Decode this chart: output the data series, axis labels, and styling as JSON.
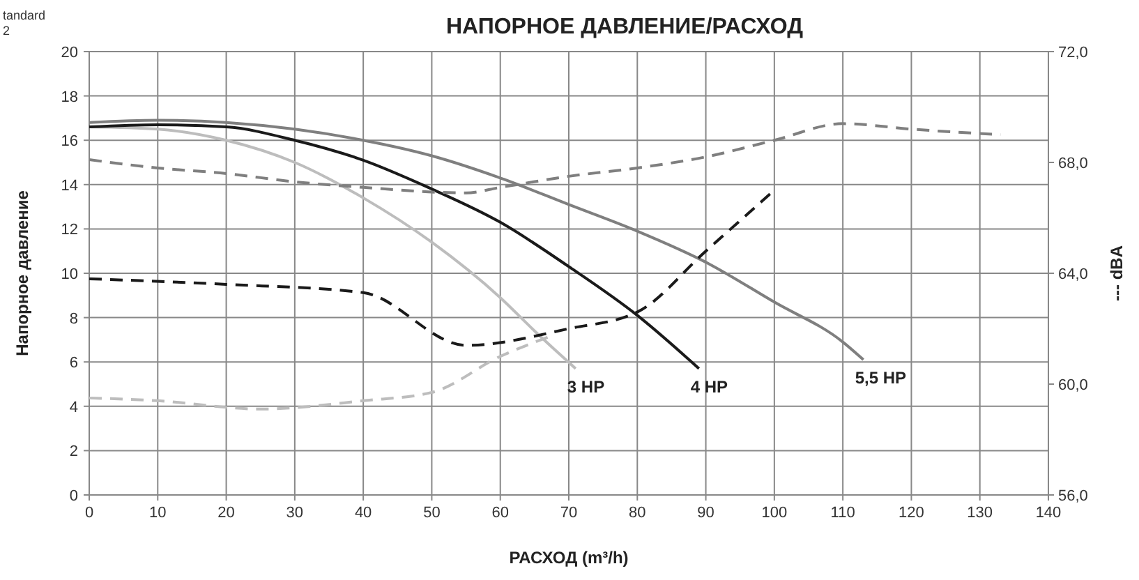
{
  "chart_data": {
    "type": "line",
    "title": "НАПОРНОЕ ДАВЛЕНИЕ/РАСХОД",
    "xlabel": "РАСХОД (m³/h)",
    "ylabel": "Напорное давление",
    "y2label": "--- dBA",
    "annotations": [
      "tandard",
      "2"
    ],
    "xlim": [
      0,
      140
    ],
    "xticks": [
      0,
      10,
      20,
      30,
      40,
      50,
      60,
      70,
      80,
      90,
      100,
      110,
      120,
      130,
      140
    ],
    "ylim": [
      0,
      20
    ],
    "yticks": [
      0,
      2,
      4,
      6,
      8,
      10,
      12,
      14,
      16,
      18,
      20
    ],
    "y2lim": [
      56,
      72
    ],
    "y2ticks": [
      {
        "value": 56,
        "label": "56,0"
      },
      {
        "value": 60,
        "label": "60,0"
      },
      {
        "value": 64,
        "label": "64,0"
      },
      {
        "value": 68,
        "label": "68,0"
      },
      {
        "value": 72,
        "label": "72,0"
      }
    ],
    "grid": true,
    "marker": "none",
    "series": [
      {
        "name": "3 HP",
        "color": "#bdbdbd",
        "line_style": "solid",
        "x": [
          0,
          10,
          20,
          30,
          40,
          50,
          60,
          65,
          71
        ],
        "values": [
          16.6,
          16.5,
          16.0,
          15.0,
          13.4,
          11.4,
          8.9,
          7.4,
          5.7
        ]
      },
      {
        "name": "4 HP",
        "color": "#1a1a1a",
        "line_style": "solid",
        "x": [
          0,
          10,
          20,
          30,
          40,
          50,
          60,
          70,
          80,
          89
        ],
        "values": [
          16.6,
          16.7,
          16.6,
          16.0,
          15.1,
          13.8,
          12.3,
          10.3,
          8.1,
          5.7
        ]
      },
      {
        "name": "5,5 HP",
        "color": "#7f7f7f",
        "line_style": "solid",
        "x": [
          0,
          10,
          20,
          30,
          40,
          50,
          60,
          70,
          80,
          90,
          100,
          110,
          113
        ],
        "values": [
          16.8,
          16.9,
          16.8,
          16.5,
          16.0,
          15.3,
          14.3,
          13.1,
          11.9,
          10.5,
          8.7,
          6.9,
          6.1
        ]
      },
      {
        "color": "#bdbdbd",
        "line_style": "dashed",
        "axis": "y2",
        "x": [
          0,
          10,
          25,
          40,
          50,
          60,
          67
        ],
        "values": [
          59.5,
          59.4,
          59.1,
          59.4,
          59.7,
          61.0,
          61.7
        ]
      },
      {
        "color": "#1a1a1a",
        "line_style": "dashed",
        "axis": "y2",
        "x": [
          0,
          20,
          40,
          55,
          70,
          80,
          90,
          100
        ],
        "values": [
          63.8,
          63.6,
          63.3,
          61.4,
          62.0,
          62.6,
          64.8,
          67.0
        ]
      },
      {
        "color": "#7f7f7f",
        "line_style": "dashed",
        "axis": "y2",
        "x": [
          0,
          10,
          20,
          30,
          40,
          55,
          60,
          70,
          80,
          90,
          100,
          110,
          120,
          133
        ],
        "values": [
          68.1,
          67.8,
          67.6,
          67.3,
          67.1,
          66.9,
          67.1,
          67.5,
          67.8,
          68.2,
          68.8,
          69.4,
          69.2,
          69.0
        ]
      }
    ]
  }
}
